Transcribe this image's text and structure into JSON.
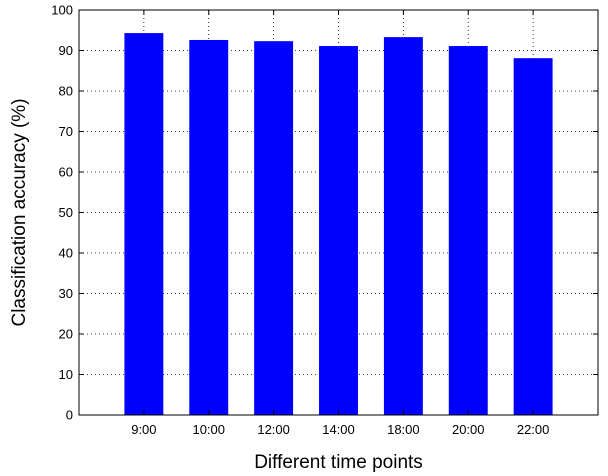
{
  "chart_data": {
    "type": "bar",
    "title": "",
    "xlabel": "Different time points",
    "ylabel": "Classification accuracy (%)",
    "categories": [
      "9:00",
      "10:00",
      "12:00",
      "14:00",
      "18:00",
      "20:00",
      "22:00"
    ],
    "values": [
      94.3,
      92.6,
      92.3,
      91.1,
      93.3,
      91.1,
      88.1
    ],
    "ylim": [
      0,
      100
    ],
    "yticks": [
      0,
      10,
      20,
      30,
      40,
      50,
      60,
      70,
      80,
      90,
      100
    ],
    "grid": true,
    "legend": "none",
    "bar_color": "#0000ff"
  }
}
